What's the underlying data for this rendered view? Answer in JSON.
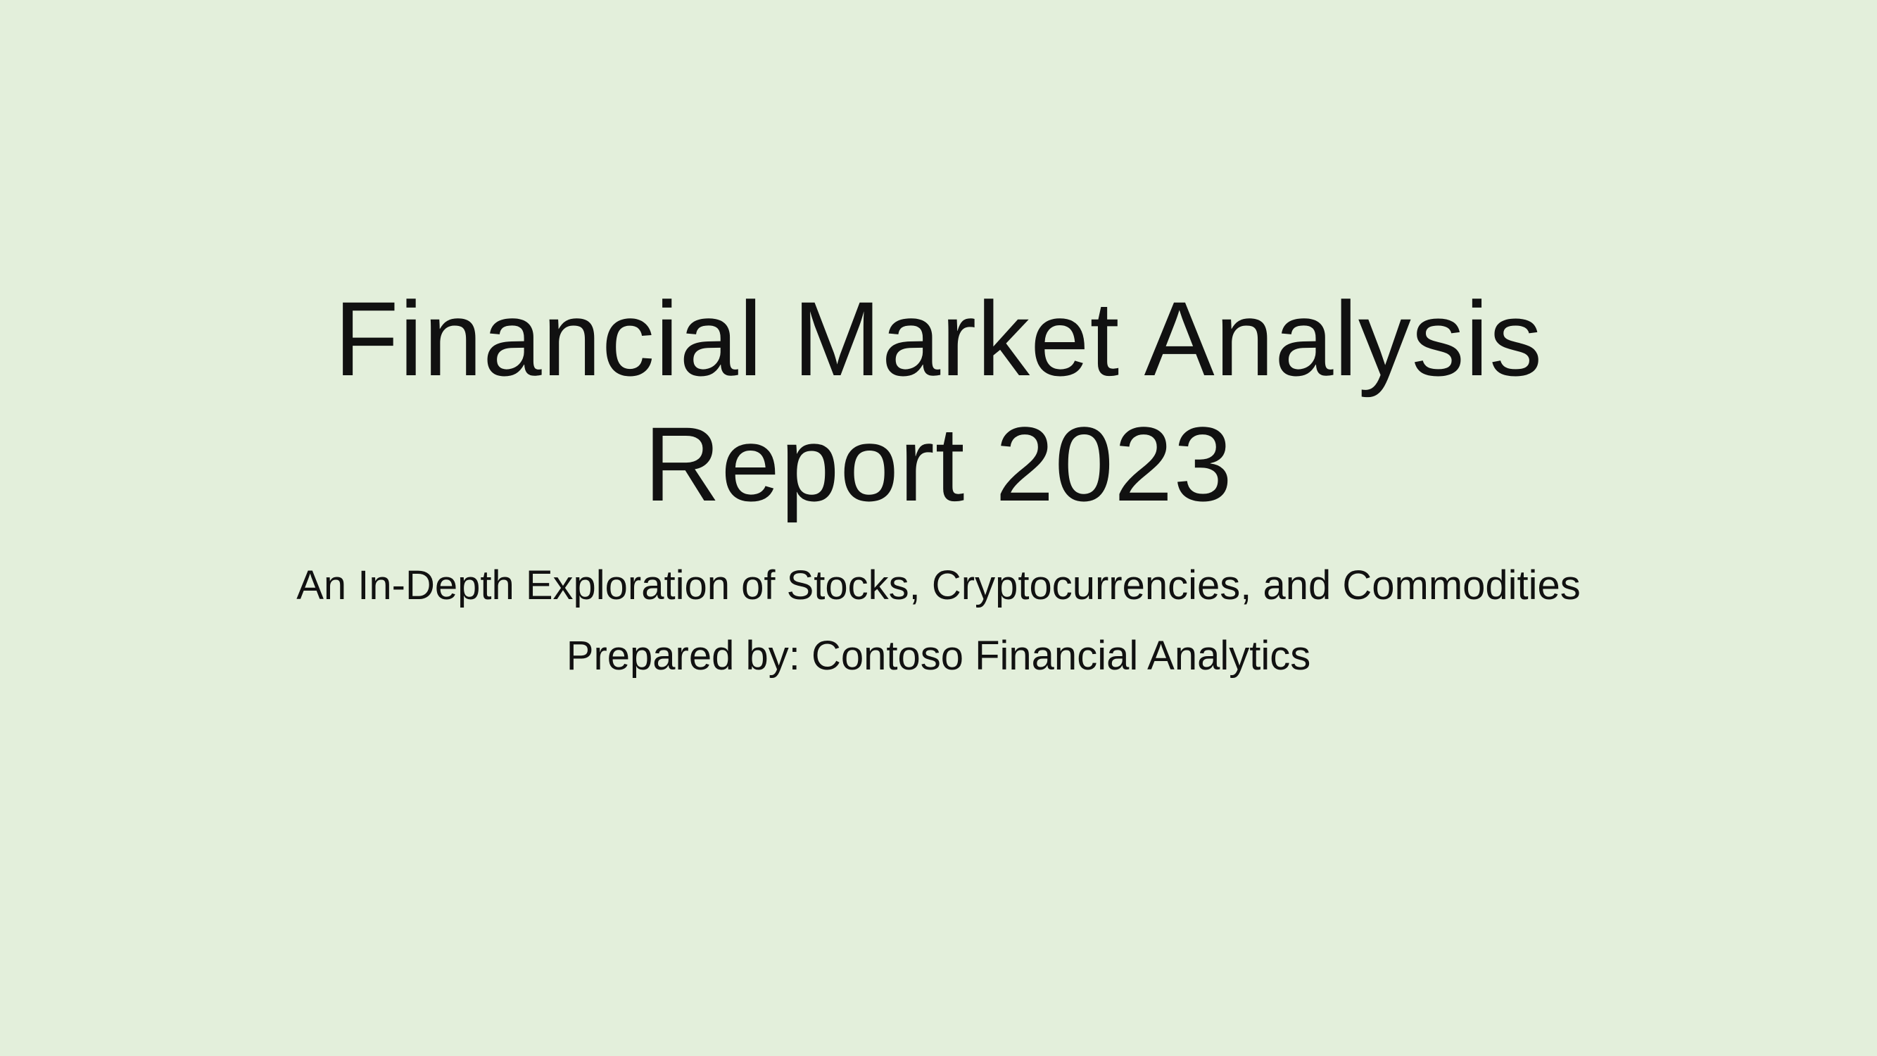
{
  "slide": {
    "background_color": "#e3efdb",
    "text_color": "#111111",
    "title_line1": "Financial Market Analysis",
    "title_line2": "Report 2023",
    "subtitle": "An In-Depth Exploration of Stocks, Cryptocurrencies, and Commodities",
    "prepared_by": "Prepared by: Contoso Financial Analytics"
  }
}
